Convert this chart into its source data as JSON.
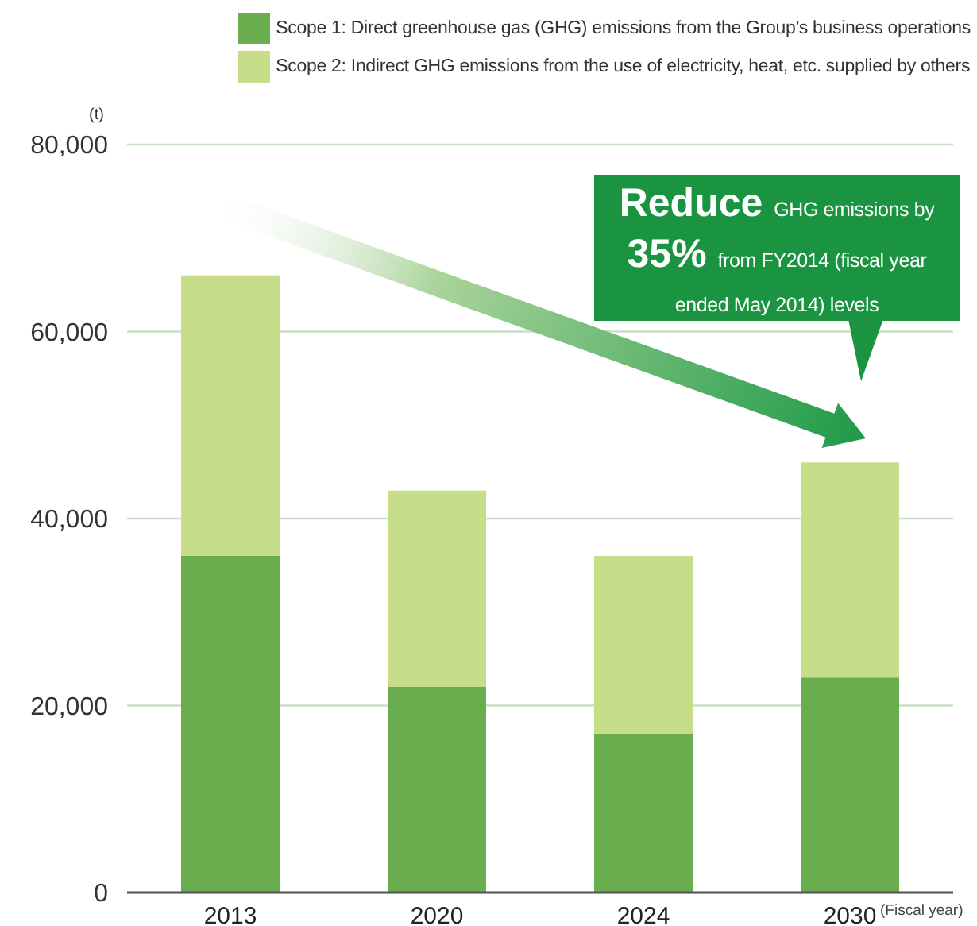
{
  "chart_data": {
    "type": "bar",
    "categories": [
      "2013",
      "2020",
      "2024",
      "2030"
    ],
    "xlabel": "(Fiscal year)",
    "ylabel": "(t)",
    "series": [
      {
        "name": "Scope 1: Direct greenhouse gas (GHG) emissions from the Group’s business operations",
        "color": "#6aad4e",
        "values": [
          36000,
          22000,
          17000,
          23000
        ]
      },
      {
        "name": "Scope 2: Indirect GHG emissions from the use of electricity, heat, etc. supplied by others",
        "color": "#c6dd8a",
        "values": [
          30000,
          21000,
          19000,
          23000
        ]
      }
    ],
    "stacked": true,
    "ylim": [
      0,
      80000
    ],
    "yticks": [
      0,
      {
        "value": 20000,
        "label": "20,000"
      },
      {
        "value": 40000,
        "label": "40,000"
      },
      {
        "value": 60000,
        "label": "60,000"
      },
      {
        "value": 80000,
        "label": "80,000"
      }
    ],
    "grid": "y",
    "legend": "top right",
    "annotations": [
      "Reduce GHG emissions by 35% from FY2014 (fiscal year ended May 2014) levels"
    ]
  }
}
